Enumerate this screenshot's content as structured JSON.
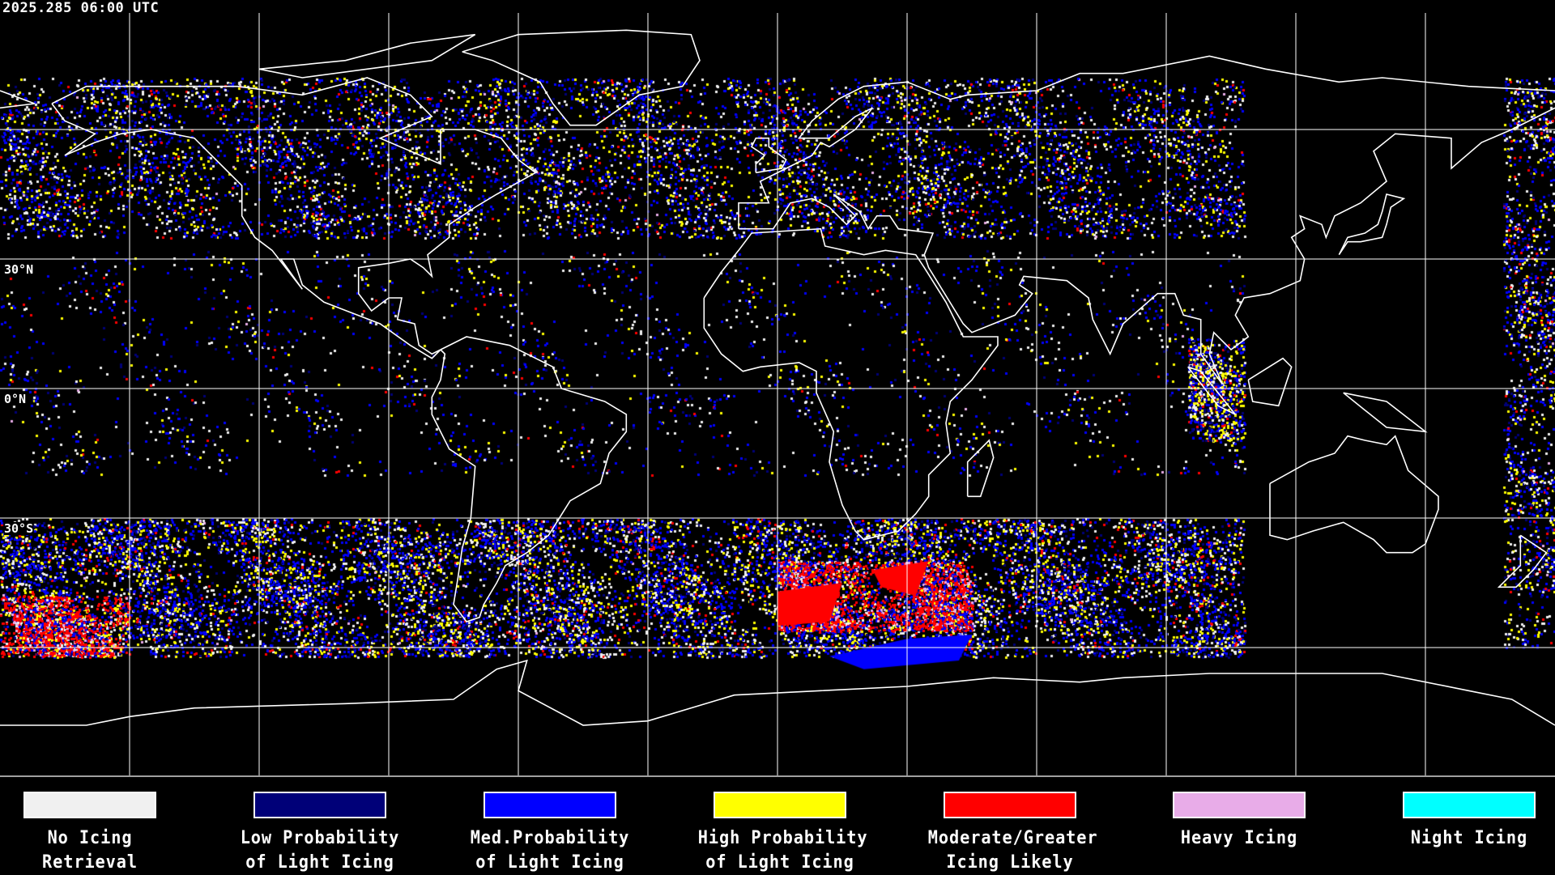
{
  "header": {
    "timestamp": "2025.285 06:00 UTC"
  },
  "map": {
    "projection": "equirectangular",
    "lon_range": [
      -180,
      180
    ],
    "lat_range": [
      -90,
      90
    ],
    "gridline_spacing_deg": 30,
    "lat_labels": [
      "30°N",
      "0°N",
      "30°S"
    ],
    "grid_color": "#ffffff",
    "coastline_color": "#ffffff",
    "background": "#000000"
  },
  "legend": {
    "items": [
      {
        "label": "No Icing\nRetrieval",
        "color": "#f0f0f0"
      },
      {
        "label": "Low Probability\nof Light Icing",
        "color": "#000078"
      },
      {
        "label": "Med.Probability\nof Light Icing",
        "color": "#0000ff"
      },
      {
        "label": "High Probability\nof Light Icing",
        "color": "#ffff00"
      },
      {
        "label": "Moderate/Greater\nIcing Likely",
        "color": "#ff0000"
      },
      {
        "label": "Heavy Icing",
        "color": "#e8acE8"
      },
      {
        "label": "Night Icing",
        "color": "#00ffff"
      }
    ]
  }
}
